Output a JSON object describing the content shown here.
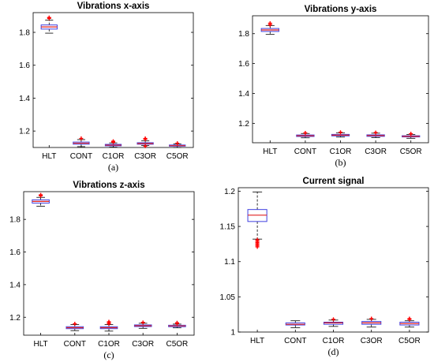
{
  "chart_data": [
    {
      "type": "box",
      "title": "Vibrations x-axis",
      "caption": "(a)",
      "categories": [
        "HLT",
        "CONT",
        "C1OR",
        "C3OR",
        "C5OR"
      ],
      "yticks": [
        "1.2",
        "1.4",
        "1.6",
        "1.8"
      ],
      "ylim": [
        1.1,
        1.92
      ],
      "boxes": [
        {
          "q1": 1.82,
          "median": 1.833,
          "q3": 1.845,
          "whisker_low": 1.795,
          "whisker_high": 1.875,
          "outliers": [
            1.885,
            1.89
          ]
        },
        {
          "q1": 1.12,
          "median": 1.126,
          "q3": 1.133,
          "whisker_low": 1.105,
          "whisker_high": 1.148,
          "outliers": [
            1.155
          ]
        },
        {
          "q1": 1.11,
          "median": 1.114,
          "q3": 1.119,
          "whisker_low": 1.102,
          "whisker_high": 1.128,
          "outliers": [
            1.133,
            1.138
          ]
        },
        {
          "q1": 1.12,
          "median": 1.124,
          "q3": 1.129,
          "whisker_low": 1.112,
          "whisker_high": 1.14,
          "outliers": [
            1.15,
            1.155,
            1.108
          ]
        },
        {
          "q1": 1.108,
          "median": 1.111,
          "q3": 1.115,
          "whisker_low": 1.1,
          "whisker_high": 1.122,
          "outliers": [
            1.126
          ]
        }
      ]
    },
    {
      "type": "box",
      "title": "Vibrations y-axis",
      "caption": "(b)",
      "categories": [
        "HLT",
        "CONT",
        "C1OR",
        "C3OR",
        "C5OR"
      ],
      "yticks": [
        "1.2",
        "1.4",
        "1.6",
        "1.8"
      ],
      "ylim": [
        1.07,
        1.92
      ],
      "boxes": [
        {
          "q1": 1.815,
          "median": 1.825,
          "q3": 1.835,
          "whisker_low": 1.795,
          "whisker_high": 1.855,
          "outliers": [
            1.86,
            1.87
          ]
        },
        {
          "q1": 1.112,
          "median": 1.117,
          "q3": 1.122,
          "whisker_low": 1.103,
          "whisker_high": 1.132,
          "outliers": [
            1.136
          ]
        },
        {
          "q1": 1.116,
          "median": 1.121,
          "q3": 1.126,
          "whisker_low": 1.108,
          "whisker_high": 1.136,
          "outliers": [
            1.14
          ]
        },
        {
          "q1": 1.113,
          "median": 1.118,
          "q3": 1.123,
          "whisker_low": 1.104,
          "whisker_high": 1.134,
          "outliers": [
            1.138
          ]
        },
        {
          "q1": 1.109,
          "median": 1.113,
          "q3": 1.117,
          "whisker_low": 1.1,
          "whisker_high": 1.126,
          "outliers": [
            1.13
          ]
        }
      ]
    },
    {
      "type": "box",
      "title": "Vibrations z-axis",
      "caption": "(c)",
      "categories": [
        "HLT",
        "CONT",
        "C1OR",
        "C3OR",
        "C5OR"
      ],
      "yticks": [
        "1.2",
        "1.4",
        "1.6",
        "1.8"
      ],
      "ylim": [
        1.09,
        1.97
      ],
      "boxes": [
        {
          "q1": 1.9,
          "median": 1.91,
          "q3": 1.92,
          "whisker_low": 1.88,
          "whisker_high": 1.935,
          "outliers": [
            1.945,
            1.95
          ]
        },
        {
          "q1": 1.13,
          "median": 1.136,
          "q3": 1.142,
          "whisker_low": 1.118,
          "whisker_high": 1.155,
          "outliers": [
            1.16
          ]
        },
        {
          "q1": 1.13,
          "median": 1.136,
          "q3": 1.142,
          "whisker_low": 1.115,
          "whisker_high": 1.155,
          "outliers": [
            1.16,
            1.168,
            1.172
          ]
        },
        {
          "q1": 1.143,
          "median": 1.148,
          "q3": 1.153,
          "whisker_low": 1.132,
          "whisker_high": 1.163,
          "outliers": [
            1.168
          ]
        },
        {
          "q1": 1.142,
          "median": 1.147,
          "q3": 1.151,
          "whisker_low": 1.135,
          "whisker_high": 1.158,
          "outliers": [
            1.162,
            1.166
          ]
        }
      ]
    },
    {
      "type": "box",
      "title": "Current signal",
      "caption": "(d)",
      "categories": [
        "HLT",
        "CONT",
        "C1OR",
        "C3OR",
        "C5OR"
      ],
      "yticks": [
        "1",
        "1.05",
        "1.1",
        "1.15",
        "1.2"
      ],
      "ylim": [
        1.0,
        1.205
      ],
      "boxes": [
        {
          "q1": 1.157,
          "median": 1.166,
          "q3": 1.174,
          "whisker_low": 1.132,
          "whisker_high": 1.199,
          "outliers": [
            1.131,
            1.129,
            1.127,
            1.125,
            1.123,
            1.121
          ]
        },
        {
          "q1": 1.01,
          "median": 1.011,
          "q3": 1.013,
          "whisker_low": 1.006,
          "whisker_high": 1.016,
          "outliers": []
        },
        {
          "q1": 1.011,
          "median": 1.013,
          "q3": 1.014,
          "whisker_low": 1.008,
          "whisker_high": 1.017,
          "outliers": [
            1.018
          ]
        },
        {
          "q1": 1.011,
          "median": 1.013,
          "q3": 1.015,
          "whisker_low": 1.007,
          "whisker_high": 1.018,
          "outliers": [
            1.019
          ]
        },
        {
          "q1": 1.01,
          "median": 1.012,
          "q3": 1.014,
          "whisker_low": 1.007,
          "whisker_high": 1.016,
          "outliers": [
            1.018,
            1.019
          ]
        }
      ]
    }
  ],
  "colors": {
    "box": "#4040e0",
    "median": "#e02020",
    "whisker": "#000000",
    "outlier": "#ff0000",
    "axis": "#000000"
  }
}
